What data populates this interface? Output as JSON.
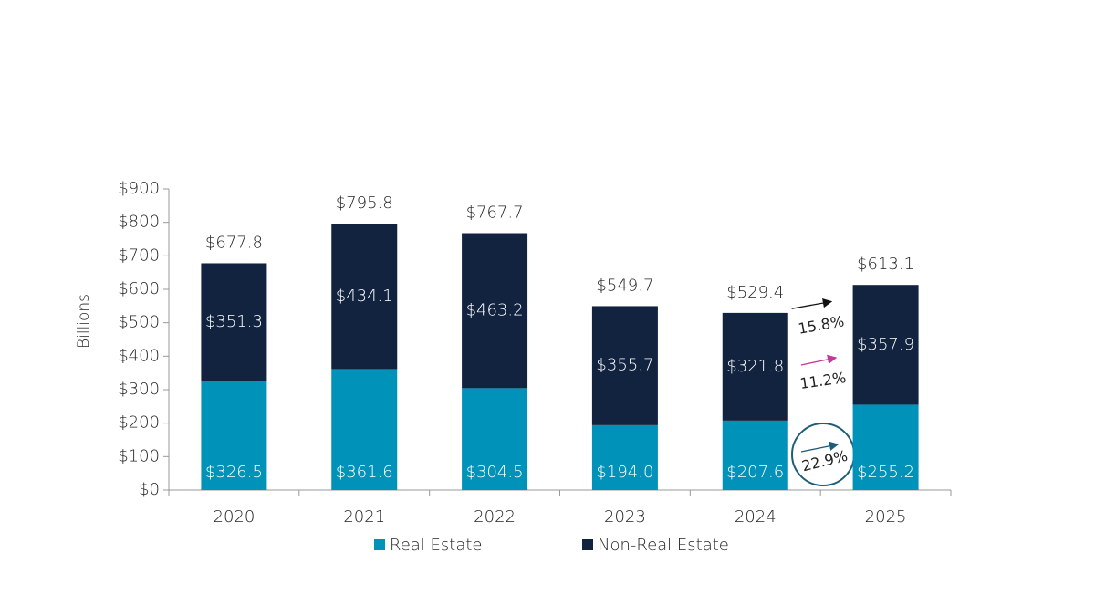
{
  "chart_data": {
    "type": "stacked-bar",
    "y_label": "Billions",
    "categories": [
      "2020",
      "2021",
      "2022",
      "2023",
      "2024",
      "2025"
    ],
    "series": [
      {
        "name": "Real Estate",
        "color": "#0092b8",
        "values": [
          326.5,
          361.6,
          304.5,
          194.0,
          207.6,
          255.2
        ],
        "value_labels": [
          "$326.5",
          "$361.6",
          "$304.5",
          "$194.0",
          "$207.6",
          "$255.2"
        ]
      },
      {
        "name": "Non-Real Estate",
        "color": "#12233f",
        "values": [
          351.3,
          434.1,
          463.2,
          355.7,
          321.8,
          357.9
        ],
        "value_labels": [
          "$351.3",
          "$434.1",
          "$463.2",
          "$355.7",
          "$321.8",
          "$357.9"
        ]
      }
    ],
    "totals": [
      677.8,
      795.8,
      767.7,
      549.7,
      529.4,
      613.1
    ],
    "total_labels": [
      "$677.8",
      "$795.8",
      "$767.7",
      "$549.7",
      "$529.4",
      "$613.1"
    ],
    "ylim": [
      0,
      900
    ],
    "yticks": [
      {
        "value": 0,
        "label": "$0"
      },
      {
        "value": 100,
        "label": "$100"
      },
      {
        "value": 200,
        "label": "$200"
      },
      {
        "value": 300,
        "label": "$300"
      },
      {
        "value": 400,
        "label": "$400"
      },
      {
        "value": 500,
        "label": "$500"
      },
      {
        "value": 600,
        "label": "$600"
      },
      {
        "value": 700,
        "label": "$700"
      },
      {
        "value": 800,
        "label": "$800"
      },
      {
        "value": 900,
        "label": "$900"
      }
    ],
    "annotations": [
      "15.8%",
      "11.2%",
      "22.9%"
    ]
  }
}
